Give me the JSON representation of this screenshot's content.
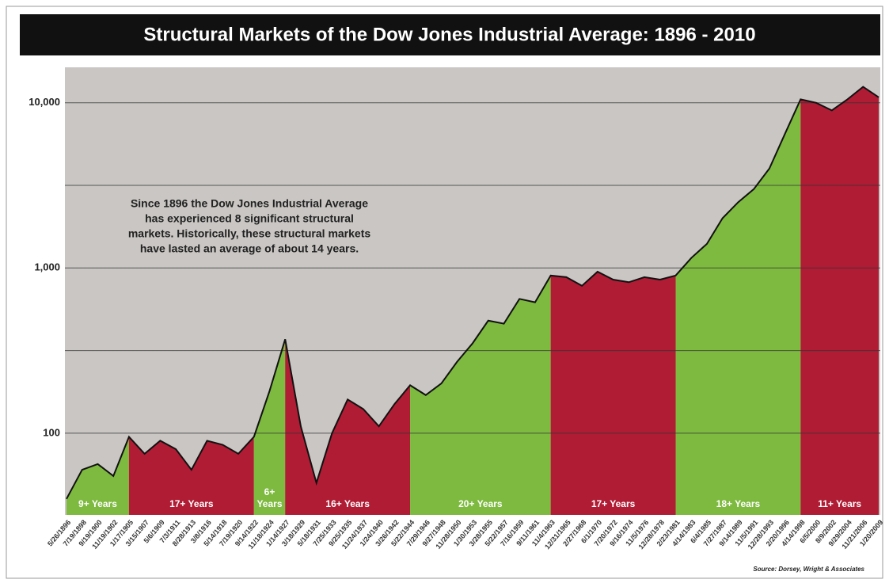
{
  "chart_data": {
    "type": "area",
    "title": "Structural Markets of the Dow Jones Industrial Average:  1896 - 2010",
    "annotation": [
      "Since 1896 the Dow Jones Industrial Average",
      "has experienced 8 significant structural",
      "markets.  Historically, these structural markets",
      "have lasted an average of about 14 years."
    ],
    "source": "Source: Dorsey, Wright & Associates",
    "categories": [
      "5/26/1896",
      "7/19/1898",
      "9/19/1900",
      "11/19/1902",
      "1/17/1905",
      "3/15/1907",
      "5/6/1909",
      "7/3/1911",
      "8/28/1913",
      "3/8/1916",
      "5/14/1918",
      "7/19/1920",
      "9/14/1922",
      "11/18/1924",
      "1/14/1927",
      "3/18/1929",
      "5/18/1931",
      "7/25/1933",
      "9/25/1935",
      "11/24/1937",
      "1/24/1940",
      "3/26/1942",
      "5/22/1944",
      "7/29/1946",
      "9/27/1948",
      "11/28/1950",
      "1/30/1953",
      "3/28/1955",
      "5/22/1957",
      "7/16/1959",
      "9/11/1961",
      "11/4/1963",
      "12/31/1965",
      "2/27/1968",
      "6/1/1970",
      "7/20/1972",
      "9/16/1974",
      "11/5/1976",
      "12/28/1978",
      "2/23/1981",
      "4/14/1983",
      "6/4/1985",
      "7/27/1987",
      "9/14/1989",
      "11/5/1991",
      "12/28/1993",
      "2/20/1996",
      "4/14/1998",
      "6/5/2000",
      "8/9/2002",
      "9/29/2004",
      "11/21/2006",
      "1/20/2009"
    ],
    "values": [
      40,
      60,
      65,
      55,
      95,
      75,
      90,
      80,
      60,
      90,
      85,
      75,
      95,
      180,
      370,
      110,
      50,
      100,
      160,
      140,
      110,
      150,
      195,
      170,
      200,
      270,
      350,
      480,
      460,
      650,
      620,
      900,
      880,
      780,
      950,
      850,
      820,
      880,
      850,
      900,
      1150,
      1400,
      2000,
      2500,
      3000,
      4000,
      6500,
      10500,
      10000,
      9000,
      10500,
      12500,
      10800
    ],
    "regions": [
      {
        "label": "9+ Years",
        "color": "#7dba3f",
        "from": "5/26/1896",
        "to": "1/17/1905"
      },
      {
        "label": "17+ Years",
        "color": "#b01c34",
        "from": "1/17/1905",
        "to": "9/14/1922"
      },
      {
        "label": "6+ Years",
        "color": "#7dba3f",
        "from": "9/14/1922",
        "to": "1/14/1927"
      },
      {
        "label": "16+ Years",
        "color": "#b01c34",
        "from": "1/14/1927",
        "to": "5/22/1944"
      },
      {
        "label": "20+ Years",
        "color": "#7dba3f",
        "from": "5/22/1944",
        "to": "11/4/1963"
      },
      {
        "label": "17+ Years",
        "color": "#b01c34",
        "from": "11/4/1963",
        "to": "2/23/1981"
      },
      {
        "label": "18+ Years",
        "color": "#7dba3f",
        "from": "2/23/1981",
        "to": "4/14/1998"
      },
      {
        "label": "11+ Years",
        "color": "#b01c34",
        "from": "4/14/1998",
        "to": "1/20/2009"
      }
    ],
    "line_color": "#111111",
    "log_scale": true,
    "ylim": [
      32,
      16400
    ],
    "yticks": [
      {
        "value": 100,
        "label": "100"
      },
      {
        "value": 1000,
        "label": "1,000"
      },
      {
        "value": 10000,
        "label": "10,000"
      }
    ],
    "minor_gridlines": [
      316.2,
      3162
    ],
    "grid": true
  }
}
